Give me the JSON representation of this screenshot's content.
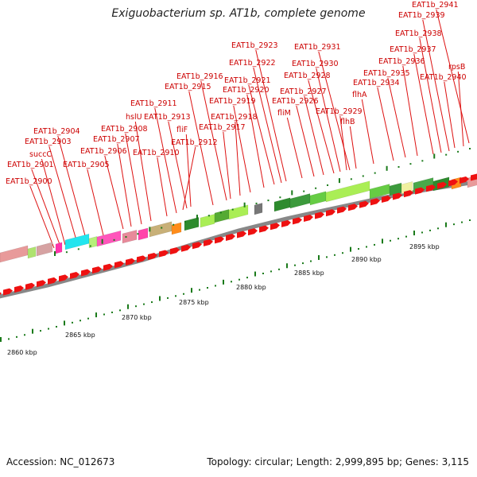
{
  "title": "Exiguobacterium sp. AT1b, complete genome",
  "accession": "Accession: NC_012673",
  "summary": "Topology: circular; Length: 2,999,895 bp; Genes: 3,115",
  "colors": {
    "gene_label": "#cc0000",
    "leader": "#dd1111",
    "arrow": "#ee1111",
    "tick": "#1a7a1a"
  },
  "gene_labels": [
    "EAT1b_2900",
    "EAT1b_2901",
    "succC",
    "EAT1b_2903",
    "EAT1b_2904",
    "EAT1b_2905",
    "EAT1b_2906",
    "EAT1b_2907",
    "EAT1b_2908",
    "hslU",
    "EAT1b_2910",
    "EAT1b_2911",
    "EAT1b_2912",
    "EAT1b_2913",
    "fliF",
    "EAT1b_2915",
    "EAT1b_2916",
    "EAT1b_2917",
    "EAT1b_2918",
    "EAT1b_2919",
    "EAT1b_2920",
    "EAT1b_2921",
    "EAT1b_2922",
    "EAT1b_2923",
    "fliM",
    "EAT1b_2926",
    "EAT1b_2927",
    "EAT1b_2928",
    "EAT1b_2929",
    "EAT1b_2930",
    "EAT1b_2931",
    "flhB",
    "flhA",
    "EAT1b_2934",
    "EAT1b_2935",
    "EAT1b_2936",
    "EAT1b_2937",
    "EAT1b_2938",
    "EAT1b_2939",
    "EAT1b_2940",
    "rpsB",
    "EAT1b_2941"
  ],
  "kbp_labels": [
    "2860 kbp",
    "2865 kbp",
    "2870 kbp",
    "2875 kbp",
    "2880 kbp",
    "2885 kbp",
    "2890 kbp",
    "2895 kbp"
  ]
}
